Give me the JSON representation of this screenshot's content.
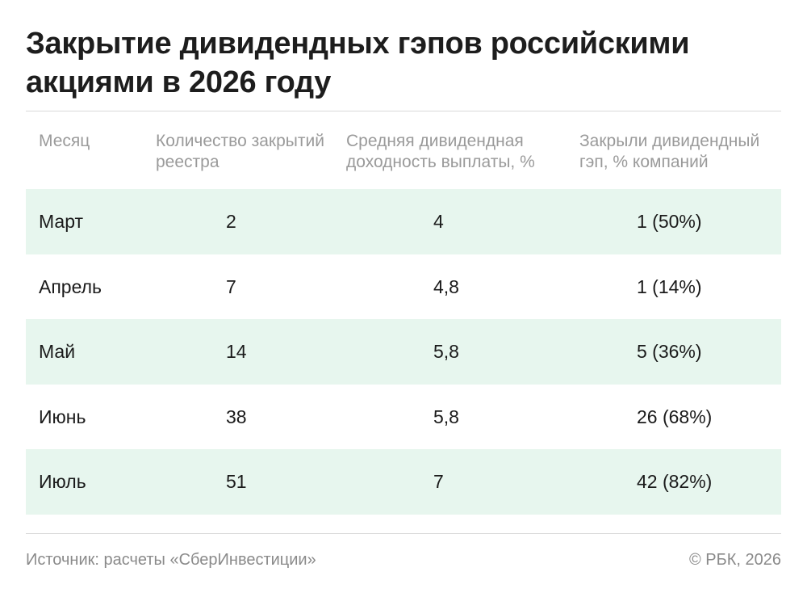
{
  "title": "Закрытие дивидендных гэпов российскими акциями в 2026 году",
  "table": {
    "headers": [
      "Месяц",
      "Количество закрытий реестра",
      "Средняя дивидендная доходность выплаты, %",
      "Закрыли дивидендный гэп, % компаний"
    ],
    "rows": [
      [
        "Март",
        "2",
        "4",
        "1 (50%)"
      ],
      [
        "Апрель",
        "7",
        "4,8",
        "1 (14%)"
      ],
      [
        "Май",
        "14",
        "5,8",
        "5 (36%)"
      ],
      [
        "Июнь",
        "38",
        "5,8",
        "26 (68%)"
      ],
      [
        "Июль",
        "51",
        "7",
        "42 (82%)"
      ]
    ]
  },
  "footer": {
    "source": "Источник: расчеты «СберИнвестиции»",
    "copyright": "© РБК, 2026"
  },
  "colors": {
    "row_shade": "#e7f6ee",
    "header_text": "#9a9a9a",
    "footer_text": "#8a8a8a"
  },
  "chart_data": {
    "type": "table",
    "title": "Закрытие дивидендных гэпов российскими акциями в 2026 году",
    "columns": [
      "Месяц",
      "Количество закрытий реестра",
      "Средняя дивидендная доходность выплаты, %",
      "Закрыли дивидендный гэп, % компаний"
    ],
    "categories": [
      "Март",
      "Апрель",
      "Май",
      "Июнь",
      "Июль"
    ],
    "series": [
      {
        "name": "Количество закрытий реестра",
        "values": [
          2,
          7,
          14,
          38,
          51
        ]
      },
      {
        "name": "Средняя дивидендная доходность выплаты, %",
        "values": [
          4,
          4.8,
          5.8,
          5.8,
          7
        ]
      },
      {
        "name": "Закрыли дивидендный гэп, % компаний",
        "values": [
          1,
          1,
          5,
          26,
          42
        ],
        "percent": [
          50,
          14,
          36,
          68,
          82
        ]
      }
    ]
  }
}
